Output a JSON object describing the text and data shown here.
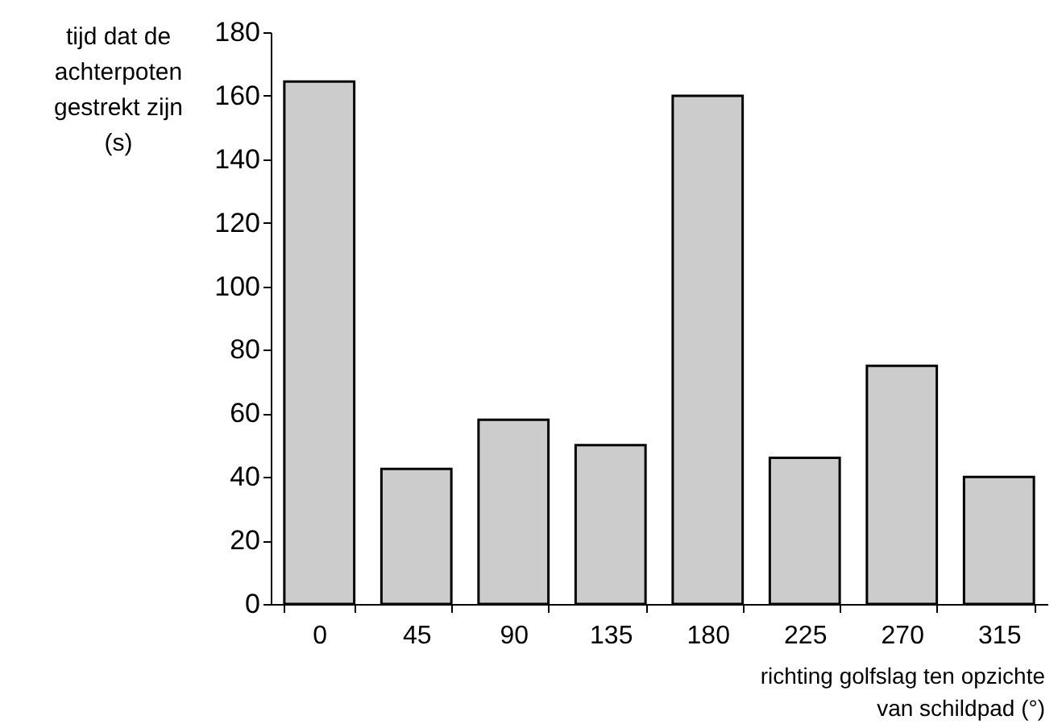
{
  "chart_data": {
    "type": "bar",
    "categories": [
      "0",
      "45",
      "90",
      "135",
      "180",
      "225",
      "270",
      "315"
    ],
    "values": [
      164.5,
      42.5,
      58,
      50,
      160,
      46,
      75,
      40
    ],
    "color": "#cccccc",
    "xlabel": "richting golfslag ten opzichte\nvan schildpad (°)",
    "ylabel": "tijd dat de\nachterpoten\ngestrekt zijn\n(s)",
    "ylim": [
      0,
      180
    ],
    "yticks": [
      0,
      20,
      40,
      60,
      80,
      100,
      120,
      140,
      160,
      180
    ],
    "grid": false
  }
}
